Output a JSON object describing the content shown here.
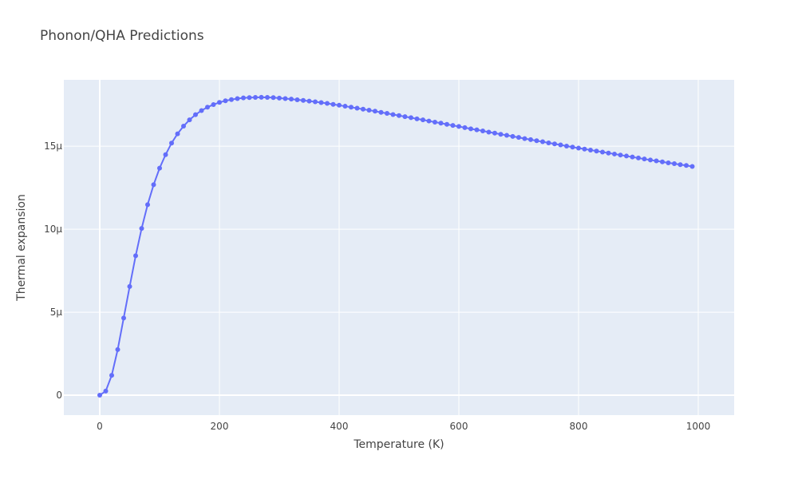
{
  "chart_data": {
    "type": "line",
    "title": "Phonon/QHA Predictions",
    "xlabel": "Temperature (K)",
    "ylabel": "Thermal expansion",
    "xlim": [
      -60,
      1060
    ],
    "ylim": [
      -1.2e-06,
      1.9e-05
    ],
    "x_ticks": [
      {
        "value": 0,
        "label": "0"
      },
      {
        "value": 200,
        "label": "200"
      },
      {
        "value": 400,
        "label": "400"
      },
      {
        "value": 600,
        "label": "600"
      },
      {
        "value": 800,
        "label": "800"
      },
      {
        "value": 1000,
        "label": "1000"
      }
    ],
    "y_ticks": [
      {
        "value": 0,
        "label": "0"
      },
      {
        "value": 5e-06,
        "label": "5μ"
      },
      {
        "value": 1e-05,
        "label": "10μ"
      },
      {
        "value": 1.5e-05,
        "label": "15μ"
      }
    ],
    "grid": true,
    "series": [
      {
        "color": "#636efa",
        "marker": "circle",
        "x": [
          0,
          10,
          20,
          30,
          40,
          50,
          60,
          70,
          80,
          90,
          100,
          110,
          120,
          130,
          140,
          150,
          160,
          170,
          180,
          190,
          200,
          210,
          220,
          230,
          240,
          250,
          260,
          270,
          280,
          290,
          300,
          310,
          320,
          330,
          340,
          350,
          360,
          370,
          380,
          390,
          400,
          410,
          420,
          430,
          440,
          450,
          460,
          470,
          480,
          490,
          500,
          510,
          520,
          530,
          540,
          550,
          560,
          570,
          580,
          590,
          600,
          610,
          620,
          630,
          640,
          650,
          660,
          670,
          680,
          690,
          700,
          710,
          720,
          730,
          740,
          750,
          760,
          770,
          780,
          790,
          800,
          810,
          820,
          830,
          840,
          850,
          860,
          870,
          880,
          890,
          900,
          910,
          920,
          930,
          940,
          950,
          960,
          970,
          980,
          990
        ],
        "y": [
          0,
          2.5e-07,
          1.2e-06,
          2.75e-06,
          4.65e-06,
          6.55e-06,
          8.4e-06,
          1.005e-05,
          1.148e-05,
          1.268e-05,
          1.368e-05,
          1.449e-05,
          1.519e-05,
          1.575e-05,
          1.621e-05,
          1.659e-05,
          1.69e-05,
          1.715e-05,
          1.735e-05,
          1.751e-05,
          1.764e-05,
          1.774e-05,
          1.781e-05,
          1.787e-05,
          1.791e-05,
          1.793e-05,
          1.794e-05,
          1.795e-05,
          1.794e-05,
          1.793e-05,
          1.79e-05,
          1.787e-05,
          1.784e-05,
          1.78e-05,
          1.776e-05,
          1.772e-05,
          1.768e-05,
          1.763e-05,
          1.758e-05,
          1.752e-05,
          1.747e-05,
          1.741e-05,
          1.735e-05,
          1.729e-05,
          1.723e-05,
          1.717e-05,
          1.711e-05,
          1.704e-05,
          1.698e-05,
          1.691e-05,
          1.685e-05,
          1.678e-05,
          1.672e-05,
          1.665e-05,
          1.659e-05,
          1.652e-05,
          1.645e-05,
          1.639e-05,
          1.632e-05,
          1.625e-05,
          1.619e-05,
          1.612e-05,
          1.605e-05,
          1.599e-05,
          1.592e-05,
          1.585e-05,
          1.579e-05,
          1.572e-05,
          1.566e-05,
          1.559e-05,
          1.553e-05,
          1.546e-05,
          1.54e-05,
          1.533e-05,
          1.527e-05,
          1.52e-05,
          1.514e-05,
          1.508e-05,
          1.501e-05,
          1.495e-05,
          1.489e-05,
          1.483e-05,
          1.477e-05,
          1.471e-05,
          1.465e-05,
          1.459e-05,
          1.453e-05,
          1.447e-05,
          1.441e-05,
          1.435e-05,
          1.429e-05,
          1.423e-05,
          1.417e-05,
          1.412e-05,
          1.406e-05,
          1.4e-05,
          1.395e-05,
          1.389e-05,
          1.384e-05,
          1.378e-05
        ]
      }
    ]
  },
  "colors": {
    "plot_background": "#e5ecf6",
    "grid": "#ffffff",
    "text": "#444444"
  }
}
